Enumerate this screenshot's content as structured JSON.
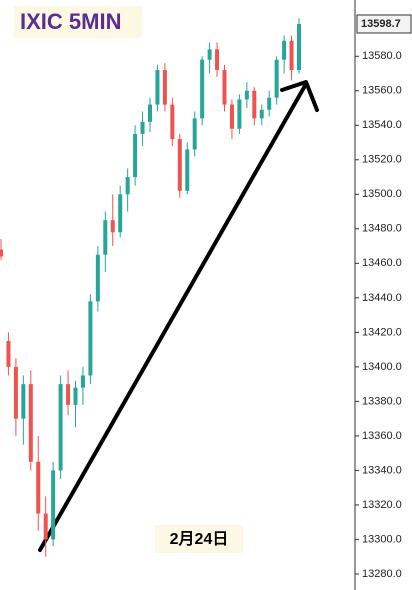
{
  "chart_data": {
    "type": "candlestick",
    "title": "IXIC 5MIN",
    "annotation": "2月24日",
    "up_color": "#26a69a",
    "down_color": "#ef5350",
    "open": [
      13468,
      13415,
      13400,
      13370,
      13390,
      13345,
      13315,
      13300,
      13340,
      13390,
      13378,
      13388,
      13395,
      13438,
      13465,
      13485,
      13478,
      13500,
      13510,
      13535,
      13542,
      13552,
      13572,
      13552,
      13532,
      13502,
      13526,
      13544,
      13578,
      13584,
      13572,
      13552,
      13538,
      13555,
      13560,
      13544,
      13549,
      13556,
      13578,
      13589,
      13572
    ],
    "high": [
      13474,
      13420,
      13405,
      13395,
      13398,
      13360,
      13325,
      13345,
      13395,
      13398,
      13392,
      13400,
      13442,
      13470,
      13490,
      13500,
      13505,
      13515,
      13540,
      13548,
      13556,
      13575,
      13576,
      13556,
      13535,
      13530,
      13548,
      13580,
      13588,
      13588,
      13575,
      13555,
      13558,
      13565,
      13562,
      13552,
      13560,
      13580,
      13592,
      13592,
      13602
    ],
    "low": [
      13462,
      13395,
      13360,
      13355,
      13340,
      13305,
      13290,
      13296,
      13335,
      13372,
      13365,
      13378,
      13390,
      13432,
      13455,
      13470,
      13475,
      13490,
      13505,
      13528,
      13536,
      13548,
      13548,
      13528,
      13498,
      13500,
      13522,
      13540,
      13570,
      13568,
      13548,
      13532,
      13535,
      13550,
      13540,
      13540,
      13545,
      13552,
      13570,
      13566,
      13570
    ],
    "close": [
      13464,
      13400,
      13370,
      13390,
      13345,
      13315,
      13300,
      13340,
      13390,
      13378,
      13388,
      13395,
      13438,
      13465,
      13485,
      13478,
      13500,
      13510,
      13535,
      13542,
      13552,
      13572,
      13552,
      13532,
      13502,
      13526,
      13544,
      13578,
      13584,
      13572,
      13552,
      13538,
      13555,
      13560,
      13544,
      13549,
      13556,
      13578,
      13589,
      13572,
      13598.7
    ],
    "ylim": [
      13270.7,
      13612.6
    ],
    "yticks": [
      {
        "value": 13280,
        "label": "13280.0"
      },
      {
        "value": 13300,
        "label": "13300.0"
      },
      {
        "value": 13320,
        "label": "13320.0"
      },
      {
        "value": 13340,
        "label": "13340.0"
      },
      {
        "value": 13360,
        "label": "13360.0"
      },
      {
        "value": 13380,
        "label": "13380.0"
      },
      {
        "value": 13400,
        "label": "13400.0"
      },
      {
        "value": 13420,
        "label": "13420.0"
      },
      {
        "value": 13440,
        "label": "13440.0"
      },
      {
        "value": 13460,
        "label": "13460.0"
      },
      {
        "value": 13480,
        "label": "13480.0"
      },
      {
        "value": 13500,
        "label": "13500.0"
      },
      {
        "value": 13520,
        "label": "13520.0"
      },
      {
        "value": 13540,
        "label": "13540.0"
      },
      {
        "value": 13560,
        "label": "13560.0"
      },
      {
        "value": 13580,
        "label": "13580.0"
      }
    ]
  }
}
